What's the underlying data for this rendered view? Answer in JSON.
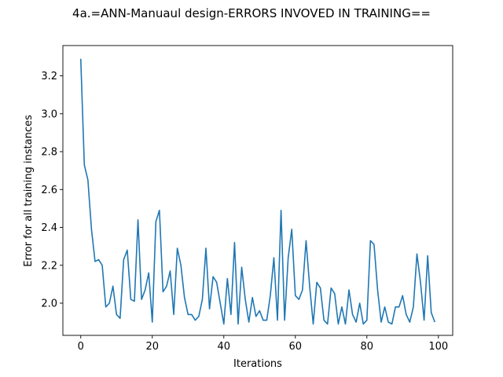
{
  "chart_data": {
    "type": "line",
    "title": "4a.=ANN-Manuaul design-ERRORS INVOVED IN TRAINING==",
    "xlabel": "Iterations",
    "ylabel": "Error for all training instances",
    "xlim": [
      -5,
      104
    ],
    "ylim": [
      1.83,
      3.36
    ],
    "xticks": [
      0,
      20,
      40,
      60,
      80,
      100
    ],
    "xtick_labels": [
      "0",
      "20",
      "40",
      "60",
      "80",
      "100"
    ],
    "yticks": [
      2.0,
      2.2,
      2.4,
      2.6,
      2.8,
      3.0,
      3.2
    ],
    "ytick_labels": [
      "2.0",
      "2.2",
      "2.4",
      "2.6",
      "2.8",
      "3.0",
      "3.2"
    ],
    "grid": false,
    "series": [
      {
        "color": "#1f77b4",
        "x": [
          0,
          1,
          2,
          3,
          4,
          5,
          6,
          7,
          8,
          9,
          10,
          11,
          12,
          13,
          14,
          15,
          16,
          17,
          18,
          19,
          20,
          21,
          22,
          23,
          24,
          25,
          26,
          27,
          28,
          29,
          30,
          31,
          32,
          33,
          34,
          35,
          36,
          37,
          38,
          39,
          40,
          41,
          42,
          43,
          44,
          45,
          46,
          47,
          48,
          49,
          50,
          51,
          52,
          53,
          54,
          55,
          56,
          57,
          58,
          59,
          60,
          61,
          62,
          63,
          64,
          65,
          66,
          67,
          68,
          69,
          70,
          71,
          72,
          73,
          74,
          75,
          76,
          77,
          78,
          79,
          80,
          81,
          82,
          83,
          84,
          85,
          86,
          87,
          88,
          89,
          90,
          91,
          92,
          93,
          94,
          95,
          96,
          97,
          98,
          99
        ],
        "values": [
          3.29,
          2.73,
          2.65,
          2.39,
          2.22,
          2.23,
          2.2,
          1.98,
          2.0,
          2.09,
          1.94,
          1.92,
          2.23,
          2.28,
          2.02,
          2.01,
          2.44,
          2.02,
          2.07,
          2.16,
          1.9,
          2.43,
          2.49,
          2.06,
          2.09,
          2.17,
          1.94,
          2.29,
          2.2,
          2.03,
          1.94,
          1.94,
          1.91,
          1.93,
          2.02,
          2.29,
          1.97,
          2.14,
          2.11,
          2.0,
          1.89,
          2.13,
          1.94,
          2.32,
          1.89,
          2.19,
          2.02,
          1.9,
          2.03,
          1.93,
          1.96,
          1.91,
          1.91,
          2.04,
          2.24,
          1.91,
          2.49,
          1.91,
          2.24,
          2.39,
          2.04,
          2.02,
          2.07,
          2.33,
          2.09,
          1.89,
          2.11,
          2.08,
          1.91,
          1.89,
          2.08,
          2.05,
          1.89,
          1.98,
          1.89,
          2.07,
          1.94,
          1.9,
          2.0,
          1.89,
          1.91,
          2.33,
          2.31,
          2.07,
          1.9,
          1.98,
          1.9,
          1.89,
          1.98,
          1.98,
          2.04,
          1.94,
          1.9,
          1.98,
          2.26,
          2.11,
          1.91,
          2.25,
          1.95,
          1.9
        ]
      }
    ]
  }
}
